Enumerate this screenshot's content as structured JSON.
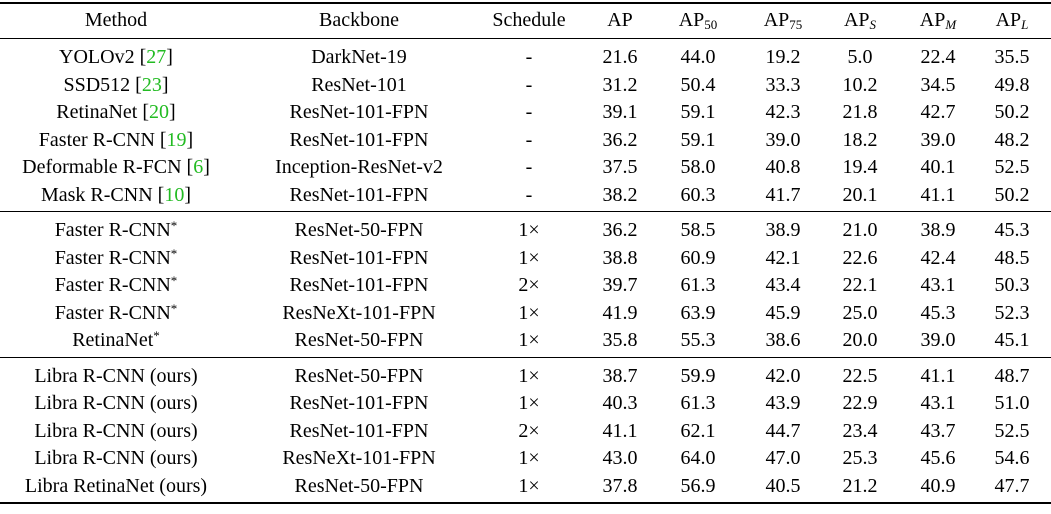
{
  "header": {
    "method": "Method",
    "backbone": "Backbone",
    "schedule": "Schedule",
    "ap": "AP",
    "ap50": {
      "base": "AP",
      "sub": "50"
    },
    "ap75": {
      "base": "AP",
      "sub": "75"
    },
    "aps": {
      "base": "AP",
      "sub": "S"
    },
    "apm": {
      "base": "AP",
      "sub": "M"
    },
    "apl": {
      "base": "AP",
      "sub": "L"
    }
  },
  "groups": [
    {
      "rows": [
        {
          "method": "YOLOv2 [",
          "ref": "27",
          "method_end": "]",
          "star": "",
          "backbone": "DarkNet-19",
          "schedule": "-",
          "vals": [
            "21.6",
            "44.0",
            "19.2",
            "5.0",
            "22.4",
            "35.5"
          ]
        },
        {
          "method": "SSD512 [",
          "ref": "23",
          "method_end": "]",
          "star": "",
          "backbone": "ResNet-101",
          "schedule": "-",
          "vals": [
            "31.2",
            "50.4",
            "33.3",
            "10.2",
            "34.5",
            "49.8"
          ]
        },
        {
          "method": "RetinaNet [",
          "ref": "20",
          "method_end": "]",
          "star": "",
          "backbone": "ResNet-101-FPN",
          "schedule": "-",
          "vals": [
            "39.1",
            "59.1",
            "42.3",
            "21.8",
            "42.7",
            "50.2"
          ]
        },
        {
          "method": "Faster R-CNN [",
          "ref": "19",
          "method_end": "]",
          "star": "",
          "backbone": "ResNet-101-FPN",
          "schedule": "-",
          "vals": [
            "36.2",
            "59.1",
            "39.0",
            "18.2",
            "39.0",
            "48.2"
          ]
        },
        {
          "method": "Deformable R-FCN [",
          "ref": "6",
          "method_end": "]",
          "star": "",
          "backbone": "Inception-ResNet-v2",
          "schedule": "-",
          "vals": [
            "37.5",
            "58.0",
            "40.8",
            "19.4",
            "40.1",
            "52.5"
          ]
        },
        {
          "method": "Mask R-CNN [",
          "ref": "10",
          "method_end": "]",
          "star": "",
          "backbone": "ResNet-101-FPN",
          "schedule": "-",
          "vals": [
            "38.2",
            "60.3",
            "41.7",
            "20.1",
            "41.1",
            "50.2"
          ]
        }
      ]
    },
    {
      "rows": [
        {
          "method": "Faster R-CNN",
          "ref": "",
          "method_end": "",
          "star": "*",
          "backbone": "ResNet-50-FPN",
          "schedule": "1×",
          "vals": [
            "36.2",
            "58.5",
            "38.9",
            "21.0",
            "38.9",
            "45.3"
          ]
        },
        {
          "method": "Faster R-CNN",
          "ref": "",
          "method_end": "",
          "star": "*",
          "backbone": "ResNet-101-FPN",
          "schedule": "1×",
          "vals": [
            "38.8",
            "60.9",
            "42.1",
            "22.6",
            "42.4",
            "48.5"
          ]
        },
        {
          "method": "Faster R-CNN",
          "ref": "",
          "method_end": "",
          "star": "*",
          "backbone": "ResNet-101-FPN",
          "schedule": "2×",
          "vals": [
            "39.7",
            "61.3",
            "43.4",
            "22.1",
            "43.1",
            "50.3"
          ]
        },
        {
          "method": "Faster R-CNN",
          "ref": "",
          "method_end": "",
          "star": "*",
          "backbone": "ResNeXt-101-FPN",
          "schedule": "1×",
          "vals": [
            "41.9",
            "63.9",
            "45.9",
            "25.0",
            "45.3",
            "52.3"
          ]
        },
        {
          "method": "RetinaNet",
          "ref": "",
          "method_end": "",
          "star": "*",
          "backbone": "ResNet-50-FPN",
          "schedule": "1×",
          "vals": [
            "35.8",
            "55.3",
            "38.6",
            "20.0",
            "39.0",
            "45.1"
          ]
        }
      ]
    },
    {
      "rows": [
        {
          "method": "Libra R-CNN (ours)",
          "ref": "",
          "method_end": "",
          "star": "",
          "backbone": "ResNet-50-FPN",
          "schedule": "1×",
          "vals": [
            "38.7",
            "59.9",
            "42.0",
            "22.5",
            "41.1",
            "48.7"
          ]
        },
        {
          "method": "Libra R-CNN (ours)",
          "ref": "",
          "method_end": "",
          "star": "",
          "backbone": "ResNet-101-FPN",
          "schedule": "1×",
          "vals": [
            "40.3",
            "61.3",
            "43.9",
            "22.9",
            "43.1",
            "51.0"
          ]
        },
        {
          "method": "Libra R-CNN (ours)",
          "ref": "",
          "method_end": "",
          "star": "",
          "backbone": "ResNet-101-FPN",
          "schedule": "2×",
          "vals": [
            "41.1",
            "62.1",
            "44.7",
            "23.4",
            "43.7",
            "52.5"
          ]
        },
        {
          "method": "Libra R-CNN (ours)",
          "ref": "",
          "method_end": "",
          "star": "",
          "backbone": "ResNeXt-101-FPN",
          "schedule": "1×",
          "vals": [
            "43.0",
            "64.0",
            "47.0",
            "25.3",
            "45.6",
            "54.6"
          ]
        },
        {
          "method": "Libra RetinaNet (ours)",
          "ref": "",
          "method_end": "",
          "star": "",
          "backbone": "ResNet-50-FPN",
          "schedule": "1×",
          "vals": [
            "37.8",
            "56.9",
            "40.5",
            "21.2",
            "40.9",
            "47.7"
          ]
        }
      ]
    }
  ]
}
